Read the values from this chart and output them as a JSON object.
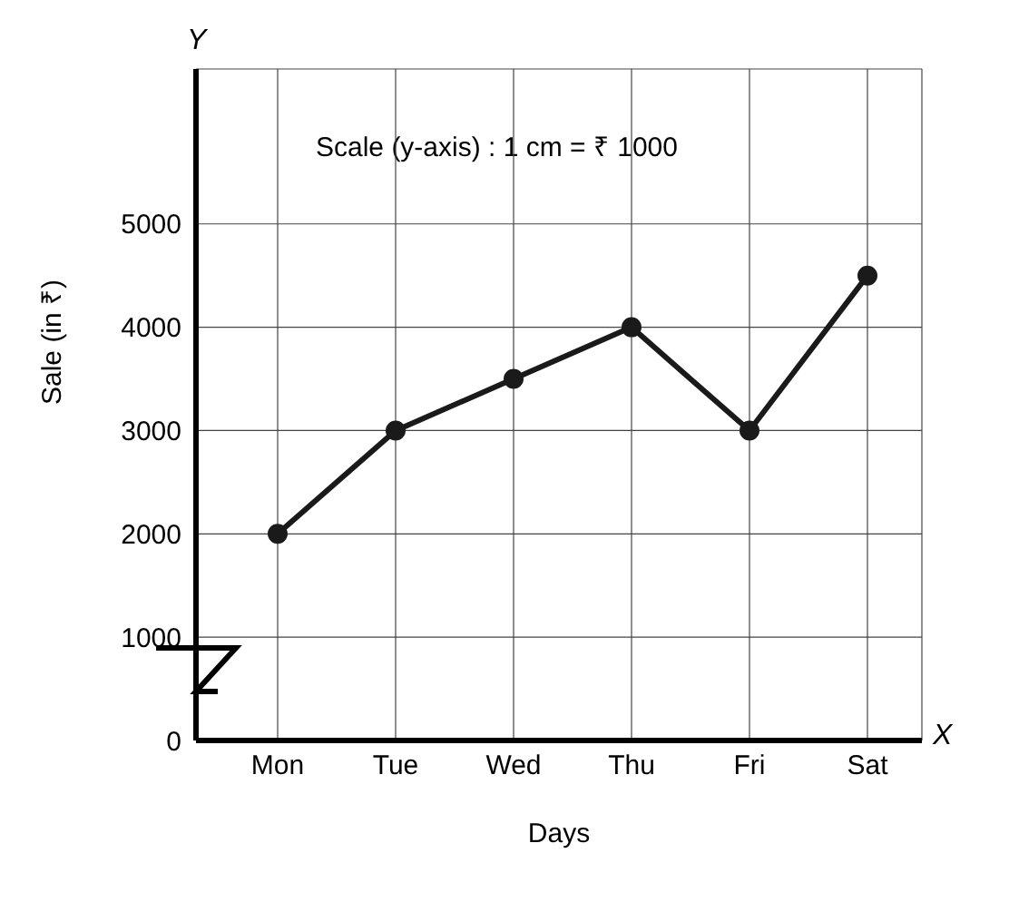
{
  "chart_data": {
    "type": "line",
    "xlabel": "Days",
    "ylabel": "Sale (in ₹)",
    "categories": [
      "Mon",
      "Tue",
      "Wed",
      "Thu",
      "Fri",
      "Sat"
    ],
    "series": [
      {
        "color": "#1a1a1a",
        "values": [
          2000,
          3000,
          3500,
          4000,
          3000,
          4500
        ]
      }
    ],
    "ylim": [
      0,
      6500
    ],
    "yticks": [
      0,
      1000,
      2000,
      3000,
      4000,
      5000
    ],
    "grid": true,
    "marker": "circle",
    "line_style": "solid",
    "annotations": [
      "Scale (y-axis) : 1 cm = ₹ 1000",
      "X",
      "Y"
    ]
  }
}
